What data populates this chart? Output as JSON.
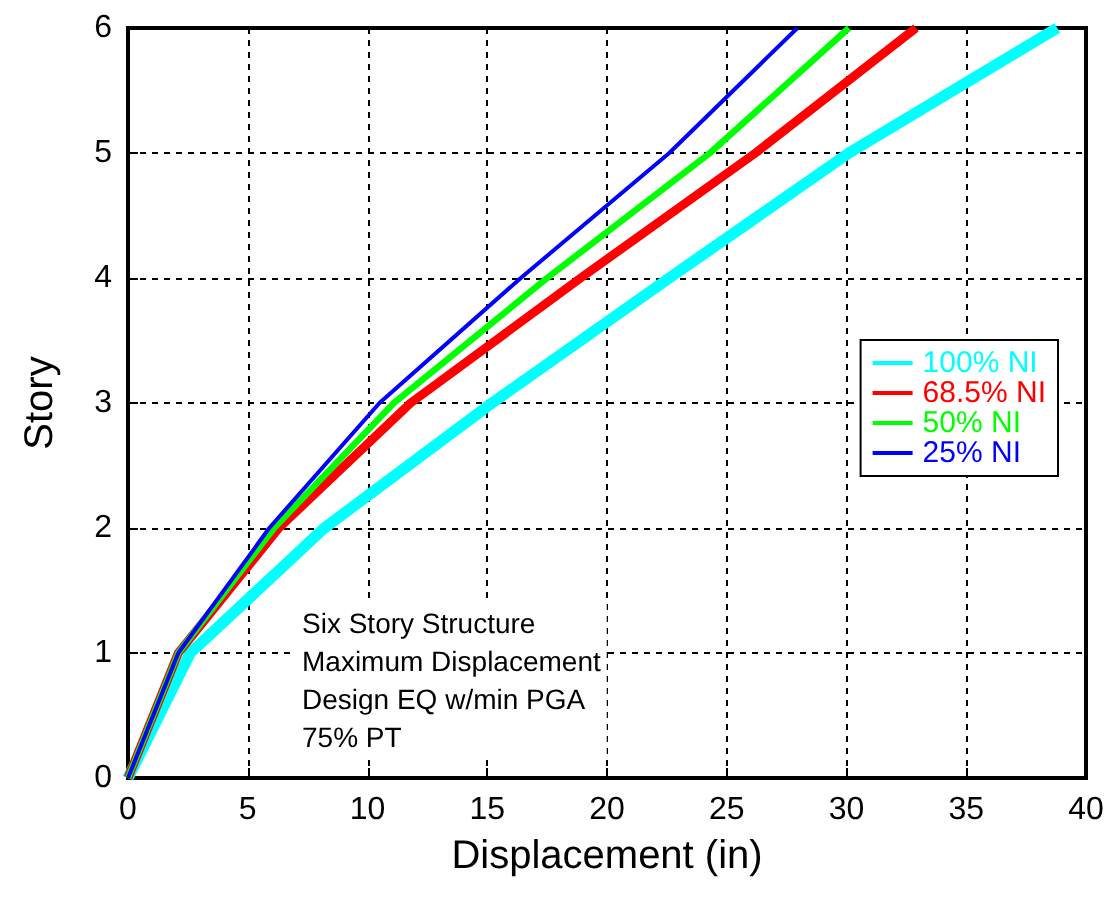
{
  "chart_data": {
    "type": "line",
    "xlabel": "Displacement (in)",
    "ylabel": "Story",
    "xlim": [
      0,
      40
    ],
    "xticks": [
      0,
      5,
      10,
      15,
      20,
      25,
      30,
      35,
      40
    ],
    "ylim": [
      0,
      6
    ],
    "yticks": [
      0,
      1,
      2,
      3,
      4,
      5,
      6
    ],
    "grid": true,
    "legend": "right",
    "marker": "none",
    "line_style": "solid",
    "annotations": [
      "Six Story Structure\nMaximum Displacement\nDesign EQ w/min PGA\n75% PT"
    ],
    "series": [
      {
        "name": "100% NI",
        "color": "#00ffff",
        "x": [
          0,
          2.6,
          8.2,
          15.2,
          22.6,
          30.1,
          38.8
        ],
        "values": [
          0,
          1,
          2,
          3,
          4,
          5,
          6
        ]
      },
      {
        "name": "68.5% NI",
        "color": "#ff0000",
        "x": [
          0,
          2.1,
          6.3,
          11.8,
          18.9,
          26.2,
          32.9
        ],
        "values": [
          0,
          1,
          2,
          3,
          4,
          5,
          6
        ]
      },
      {
        "name": "50% NI",
        "color": "#00ff00",
        "x": [
          0,
          2.1,
          6.1,
          11.1,
          17.5,
          24.3,
          30.1
        ],
        "values": [
          0,
          1,
          2,
          3,
          4,
          5,
          6
        ]
      },
      {
        "name": "25% NI",
        "color": "#0000ff",
        "x": [
          0,
          2.1,
          5.9,
          10.5,
          16.4,
          22.6,
          27.95
        ],
        "values": [
          0,
          1,
          2,
          3,
          4,
          5,
          6
        ]
      }
    ]
  }
}
